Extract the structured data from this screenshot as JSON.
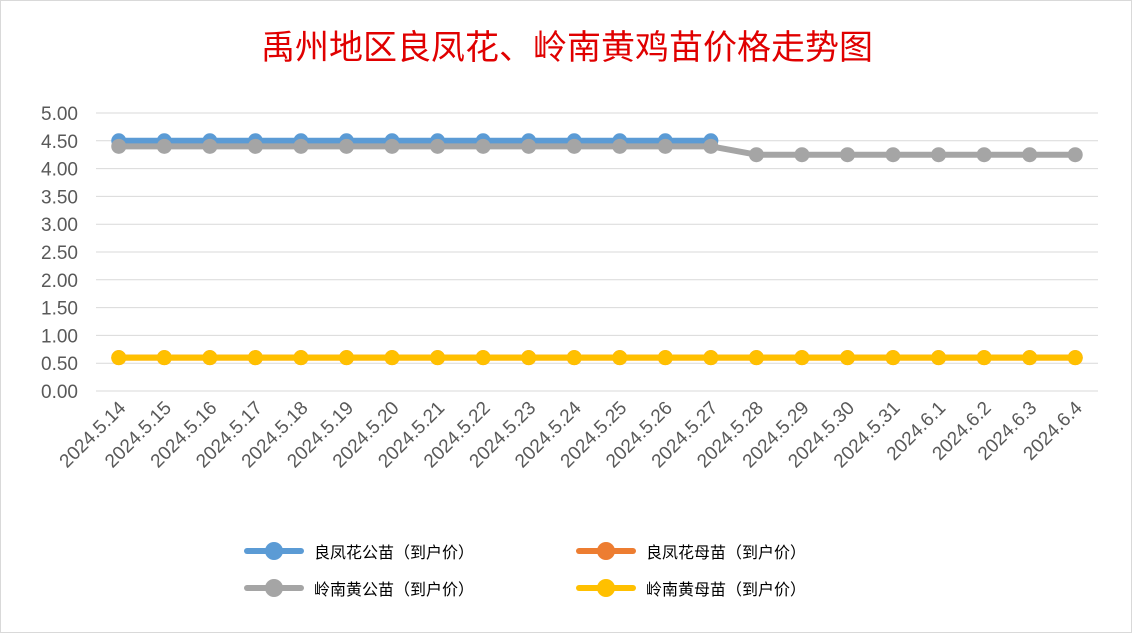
{
  "chart_data": {
    "type": "line",
    "title": "禹州地区良凤花、岭南黄鸡苗价格走势图",
    "categories": [
      "2024.5.14",
      "2024.5.15",
      "2024.5.16",
      "2024.5.17",
      "2024.5.18",
      "2024.5.19",
      "2024.5.20",
      "2024.5.21",
      "2024.5.22",
      "2024.5.23",
      "2024.5.24",
      "2024.5.25",
      "2024.5.26",
      "2024.5.27",
      "2024.5.28",
      "2024.5.29",
      "2024.5.30",
      "2024.5.31",
      "2024.6.1",
      "2024.6.2",
      "2024.6.3",
      "2024.6.4"
    ],
    "ylim": [
      0,
      5
    ],
    "ytick_step": 0.5,
    "ytick_labels": [
      "0.00",
      "0.50",
      "1.00",
      "1.50",
      "2.00",
      "2.50",
      "3.00",
      "3.50",
      "4.00",
      "4.50",
      "5.00"
    ],
    "grid": true,
    "legend_position": "bottom",
    "series": [
      {
        "name": "良凤花公苗（到户价）",
        "color": "#5b9bd5",
        "values": [
          4.5,
          4.5,
          4.5,
          4.5,
          4.5,
          4.5,
          4.5,
          4.5,
          4.5,
          4.5,
          4.5,
          4.5,
          4.5,
          4.5,
          null,
          null,
          null,
          null,
          null,
          null,
          null,
          null
        ]
      },
      {
        "name": "良凤花母苗（到户价）",
        "color": "#ed7d31",
        "values": [
          0.6,
          0.6,
          0.6,
          0.6,
          0.6,
          0.6,
          0.6,
          0.6,
          0.6,
          0.6,
          0.6,
          0.6,
          0.6,
          0.6,
          0.6,
          0.6,
          0.6,
          0.6,
          0.6,
          0.6,
          0.6,
          0.6
        ]
      },
      {
        "name": "岭南黄公苗（到户价）",
        "color": "#a5a5a5",
        "values": [
          4.4,
          4.4,
          4.4,
          4.4,
          4.4,
          4.4,
          4.4,
          4.4,
          4.4,
          4.4,
          4.4,
          4.4,
          4.4,
          4.4,
          4.25,
          4.25,
          4.25,
          4.25,
          4.25,
          4.25,
          4.25,
          4.25
        ]
      },
      {
        "name": "岭南黄母苗（到户价）",
        "color": "#ffc000",
        "values": [
          0.6,
          0.6,
          0.6,
          0.6,
          0.6,
          0.6,
          0.6,
          0.6,
          0.6,
          0.6,
          0.6,
          0.6,
          0.6,
          0.6,
          0.6,
          0.6,
          0.6,
          0.6,
          0.6,
          0.6,
          0.6,
          0.6
        ]
      }
    ]
  }
}
